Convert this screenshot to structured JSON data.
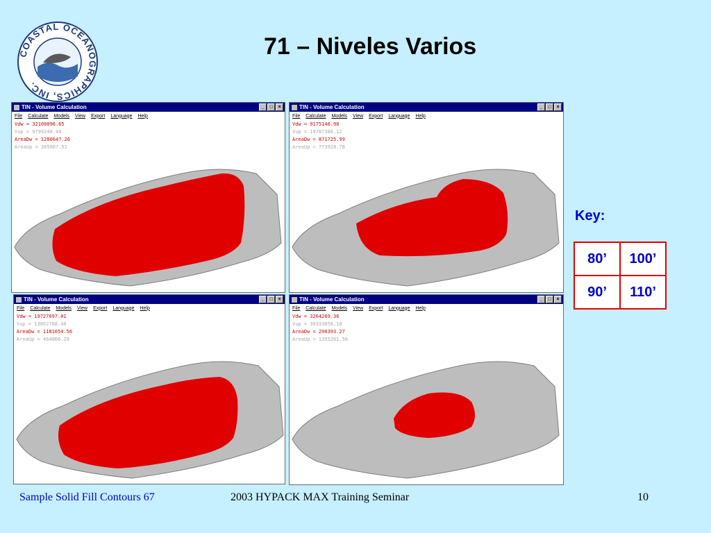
{
  "logo": {
    "ring_text": "COASTAL OCEANOGRAPHICS, INC."
  },
  "slide": {
    "title": "71 – Niveles Varios"
  },
  "window_common": {
    "title": "TIN - Volume Calculation",
    "controls": [
      "_",
      "□",
      "×"
    ],
    "menu": [
      "File",
      "Calculate",
      "Models",
      "View",
      "Export",
      "Language",
      "Help"
    ]
  },
  "windows": [
    {
      "vdw": "Vdw =   32100096.65",
      "vup": "Vup =   9799240.44",
      "areadw": "AreaDw =   1280647.26",
      "areaup": "AreaUp =    365007.51"
    },
    {
      "vdw": "Vdw =   9175146.98",
      "vup": "Vup =  19787386.12",
      "areadw": "AreaDw =    871725.99",
      "areaup": "AreaUp =    773928.78"
    },
    {
      "vdw": "Vdw =  19727097.01",
      "vup": "Vup =  13802788.48",
      "areadw": "AreaDw =   1181654.56",
      "areaup": "AreaUp =    464000.29"
    },
    {
      "vdw": "Vdw =   3264269.36",
      "vup": "Vup =  30333856.18",
      "areadw": "AreaDw =    290393.27",
      "areaup": "AreaUp =   1355261.56"
    }
  ],
  "key": {
    "label": "Key:",
    "cells": [
      [
        "80’",
        "100’"
      ],
      [
        "90’",
        "110’"
      ]
    ]
  },
  "footer": {
    "left": "Sample Solid Fill Contours 67",
    "center": "2003 HYPACK MAX Training Seminar",
    "page": "10"
  },
  "colors": {
    "background": "#c6efff",
    "fill": "#e00000",
    "titlebar": "#000080",
    "accent_text": "#0000cc"
  }
}
